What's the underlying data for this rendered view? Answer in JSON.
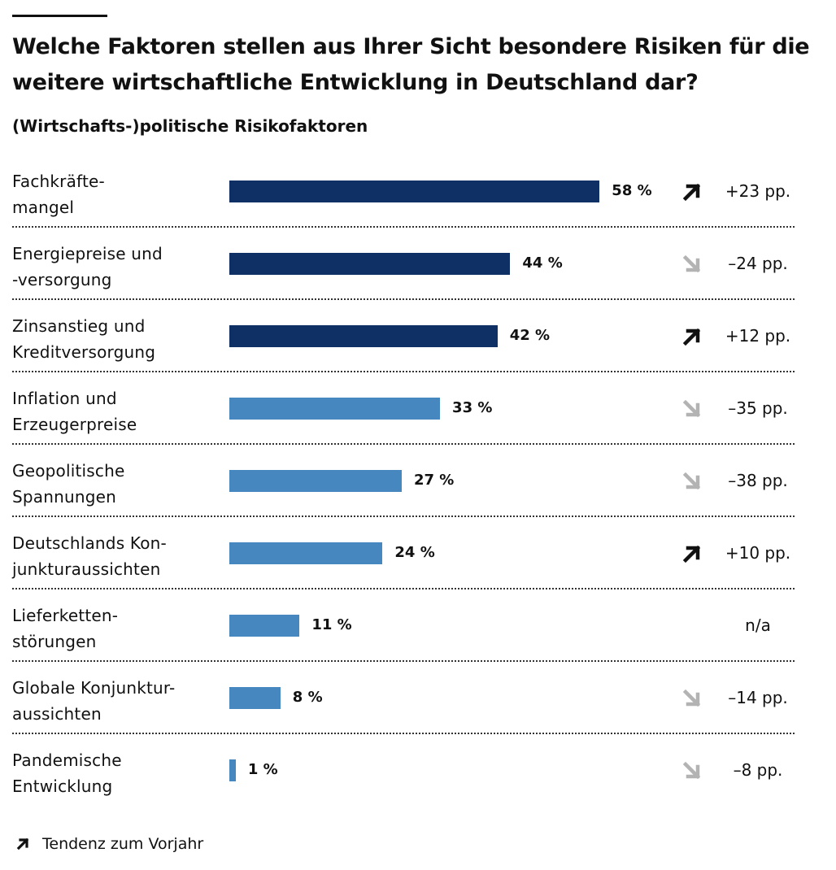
{
  "title": "Welche Faktoren stellen aus Ihrer Sicht besondere Risiken für die weitere wirtschaftliche Entwicklung in Deutschland dar?",
  "subtitle": "(Wirtschafts-)politische Risikofaktoren",
  "legend_text": "Tendenz zum Vorjahr",
  "colors": {
    "dark": "#0f3064",
    "light": "#4787bf",
    "arrow_up": "#111111",
    "arrow_down": "#b3b3b3"
  },
  "chart_data": {
    "type": "bar",
    "orientation": "horizontal",
    "title": "Welche Faktoren stellen aus Ihrer Sicht besondere Risiken für die weitere wirtschaftliche Entwicklung in Deutschland dar?",
    "subtitle": "(Wirtschafts-)politische Risikofaktoren",
    "categories": [
      "Fachkräftemangel",
      "Energiepreise und -versorgung",
      "Zinsanstieg und Kreditversorgung",
      "Inflation und Erzeugerpreise",
      "Geopolitische Spannungen",
      "Deutschlands Konjunkturaussichten",
      "Lieferkettenstörungen",
      "Globale Konjunkturaussichten",
      "Pandemische Entwicklung"
    ],
    "values": [
      58,
      44,
      42,
      33,
      27,
      24,
      11,
      8,
      1
    ],
    "unit": "%",
    "xlim": [
      0,
      100
    ],
    "rows": [
      {
        "label": [
          "Fachkräfte-",
          "mangel"
        ],
        "value": 58,
        "value_label": "58 %",
        "color": "dark",
        "trend": "up",
        "change": "+23 pp."
      },
      {
        "label": [
          "Energiepreise und",
          "-versorgung"
        ],
        "value": 44,
        "value_label": "44 %",
        "color": "dark",
        "trend": "down",
        "change": "–24 pp."
      },
      {
        "label": [
          "Zinsanstieg und",
          "Kreditversorgung"
        ],
        "value": 42,
        "value_label": "42 %",
        "color": "dark",
        "trend": "up",
        "change": "+12 pp."
      },
      {
        "label": [
          "Inflation und",
          "Erzeugerpreise"
        ],
        "value": 33,
        "value_label": "33 %",
        "color": "light",
        "trend": "down",
        "change": "–35 pp."
      },
      {
        "label": [
          "Geopolitische",
          "Spannungen"
        ],
        "value": 27,
        "value_label": "27 %",
        "color": "light",
        "trend": "down",
        "change": "–38 pp."
      },
      {
        "label": [
          "Deutschlands Kon-",
          "junkturaussichten"
        ],
        "value": 24,
        "value_label": "24 %",
        "color": "light",
        "trend": "up",
        "change": "+10 pp."
      },
      {
        "label": [
          "Lieferketten-",
          "störungen"
        ],
        "value": 11,
        "value_label": "11 %",
        "color": "light",
        "trend": "none",
        "change": "n/a"
      },
      {
        "label": [
          "Globale Konjunktur-",
          "aussichten"
        ],
        "value": 8,
        "value_label": "8 %",
        "color": "light",
        "trend": "down",
        "change": "–14 pp."
      },
      {
        "label": [
          "Pandemische",
          "Entwicklung"
        ],
        "value": 1,
        "value_label": "1 %",
        "color": "light",
        "trend": "down",
        "change": "–8 pp."
      }
    ],
    "grid": false,
    "legend": "bottom-left"
  }
}
